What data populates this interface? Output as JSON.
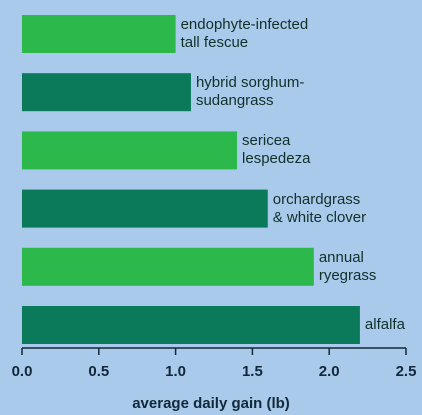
{
  "chart_data": {
    "type": "bar",
    "orientation": "horizontal",
    "categories": [
      "endophyte-infected\ntall fescue",
      "hybrid sorghum-\nsudangrass",
      "sericea\nlespedeza",
      "orchardgrass\n& white clover",
      "annual\nryegrass",
      "alfalfa"
    ],
    "values": [
      1.0,
      1.1,
      1.4,
      1.6,
      1.9,
      2.2
    ],
    "colors": [
      "#2db84c",
      "#0a7a5a",
      "#2db84c",
      "#0a7a5a",
      "#2db84c",
      "#0a7a5a"
    ],
    "xlabel": "average daily gain (lb)",
    "xlim": [
      0,
      2.5
    ],
    "xticks": [
      {
        "value": 0,
        "label": "0.0"
      },
      {
        "value": 0.5,
        "label": "0.5"
      },
      {
        "value": 1,
        "label": "1.0"
      },
      {
        "value": 1.5,
        "label": "1.5"
      },
      {
        "value": 2,
        "label": "2.0"
      },
      {
        "value": 2.5,
        "label": "2.5"
      }
    ],
    "grid": false
  }
}
